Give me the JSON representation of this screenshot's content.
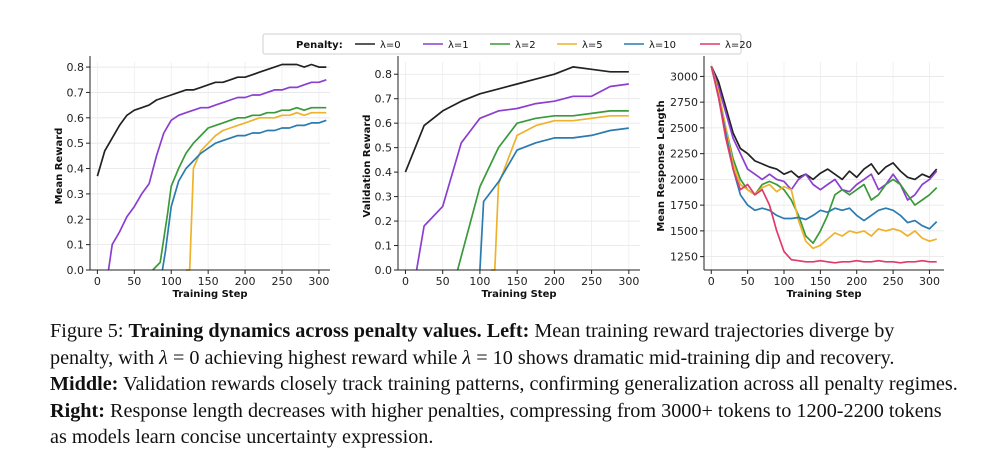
{
  "chart_data": [
    {
      "type": "line",
      "panel": "left",
      "xlabel": "Training Step",
      "ylabel": "Mean Reward",
      "xlim": [
        -10,
        315
      ],
      "ylim": [
        0,
        0.82
      ],
      "xticks": [
        0,
        50,
        100,
        150,
        200,
        250,
        300
      ],
      "yticks": [
        0.0,
        0.1,
        0.2,
        0.3,
        0.4,
        0.5,
        0.6,
        0.7,
        0.8
      ],
      "ytick_labels": [
        "0.0",
        "0.1",
        "0.2",
        "0.3",
        "0.4",
        "0.5",
        "0.6",
        "0.7",
        "0.8"
      ],
      "grid": true,
      "series": [
        {
          "name": "λ=0",
          "x": [
            0,
            10,
            20,
            30,
            40,
            50,
            60,
            70,
            80,
            90,
            100,
            110,
            120,
            130,
            140,
            150,
            160,
            170,
            180,
            190,
            200,
            210,
            220,
            230,
            240,
            250,
            260,
            270,
            280,
            290,
            300,
            310
          ],
          "y": [
            0.37,
            0.47,
            0.52,
            0.57,
            0.61,
            0.63,
            0.64,
            0.65,
            0.67,
            0.68,
            0.69,
            0.7,
            0.71,
            0.71,
            0.72,
            0.73,
            0.74,
            0.74,
            0.75,
            0.76,
            0.76,
            0.77,
            0.78,
            0.79,
            0.8,
            0.81,
            0.81,
            0.81,
            0.8,
            0.81,
            0.8,
            0.8
          ]
        },
        {
          "name": "λ=1",
          "x": [
            15,
            20,
            30,
            40,
            50,
            60,
            70,
            80,
            90,
            100,
            110,
            120,
            130,
            140,
            150,
            160,
            170,
            180,
            190,
            200,
            210,
            220,
            230,
            240,
            250,
            260,
            270,
            280,
            290,
            300,
            310
          ],
          "y": [
            0.0,
            0.1,
            0.15,
            0.21,
            0.25,
            0.3,
            0.34,
            0.45,
            0.54,
            0.59,
            0.61,
            0.62,
            0.63,
            0.64,
            0.64,
            0.65,
            0.66,
            0.67,
            0.68,
            0.68,
            0.69,
            0.69,
            0.7,
            0.71,
            0.71,
            0.72,
            0.72,
            0.73,
            0.74,
            0.74,
            0.75
          ]
        },
        {
          "name": "λ=2",
          "x": [
            75,
            85,
            95,
            100,
            110,
            120,
            130,
            140,
            150,
            160,
            170,
            180,
            190,
            200,
            210,
            220,
            230,
            240,
            250,
            260,
            270,
            280,
            290,
            300,
            310
          ],
          "y": [
            0.0,
            0.03,
            0.22,
            0.33,
            0.4,
            0.46,
            0.5,
            0.53,
            0.56,
            0.57,
            0.58,
            0.59,
            0.6,
            0.6,
            0.61,
            0.61,
            0.62,
            0.62,
            0.63,
            0.63,
            0.64,
            0.63,
            0.64,
            0.64,
            0.64
          ]
        },
        {
          "name": "λ=5",
          "x": [
            120,
            125,
            130,
            140,
            150,
            160,
            170,
            180,
            190,
            200,
            210,
            220,
            230,
            240,
            250,
            260,
            270,
            280,
            290,
            300,
            310
          ],
          "y": [
            0.0,
            0.0,
            0.4,
            0.47,
            0.5,
            0.53,
            0.55,
            0.56,
            0.57,
            0.58,
            0.59,
            0.6,
            0.6,
            0.6,
            0.61,
            0.61,
            0.62,
            0.61,
            0.62,
            0.62,
            0.62
          ]
        },
        {
          "name": "λ=10",
          "x": [
            88,
            92,
            100,
            110,
            120,
            130,
            140,
            150,
            160,
            170,
            180,
            190,
            200,
            210,
            220,
            230,
            240,
            250,
            260,
            270,
            280,
            290,
            300,
            310
          ],
          "y": [
            0.0,
            0.07,
            0.25,
            0.35,
            0.4,
            0.43,
            0.46,
            0.48,
            0.5,
            0.51,
            0.52,
            0.53,
            0.53,
            0.54,
            0.54,
            0.55,
            0.55,
            0.56,
            0.56,
            0.57,
            0.57,
            0.58,
            0.58,
            0.59
          ]
        }
      ]
    },
    {
      "type": "line",
      "panel": "middle",
      "xlabel": "Training Step",
      "ylabel": "Validation Reward",
      "xlim": [
        -10,
        315
      ],
      "ylim": [
        0,
        0.85
      ],
      "xticks": [
        0,
        50,
        100,
        150,
        200,
        250,
        300
      ],
      "yticks": [
        0.0,
        0.1,
        0.2,
        0.3,
        0.4,
        0.5,
        0.6,
        0.7,
        0.8
      ],
      "ytick_labels": [
        "0.0",
        "0.1",
        "0.2",
        "0.3",
        "0.4",
        "0.5",
        "0.6",
        "0.7",
        "0.8"
      ],
      "grid": true,
      "series": [
        {
          "name": "λ=0",
          "x": [
            0,
            25,
            50,
            75,
            100,
            125,
            150,
            175,
            200,
            225,
            250,
            275,
            300
          ],
          "y": [
            0.4,
            0.59,
            0.65,
            0.69,
            0.72,
            0.74,
            0.76,
            0.78,
            0.8,
            0.83,
            0.82,
            0.81,
            0.81
          ]
        },
        {
          "name": "λ=1",
          "x": [
            15,
            25,
            50,
            75,
            100,
            125,
            150,
            175,
            200,
            225,
            250,
            275,
            300
          ],
          "y": [
            0.0,
            0.18,
            0.26,
            0.52,
            0.62,
            0.65,
            0.66,
            0.68,
            0.69,
            0.71,
            0.71,
            0.75,
            0.76
          ]
        },
        {
          "name": "λ=2",
          "x": [
            70,
            100,
            125,
            150,
            175,
            200,
            225,
            250,
            275,
            300
          ],
          "y": [
            0.0,
            0.34,
            0.5,
            0.6,
            0.62,
            0.63,
            0.63,
            0.64,
            0.65,
            0.65
          ]
        },
        {
          "name": "λ=5",
          "x": [
            115,
            120,
            125,
            150,
            175,
            200,
            225,
            250,
            275,
            300
          ],
          "y": [
            0.0,
            0.0,
            0.35,
            0.55,
            0.59,
            0.61,
            0.61,
            0.62,
            0.63,
            0.63
          ]
        },
        {
          "name": "λ=10",
          "x": [
            100,
            105,
            125,
            150,
            175,
            200,
            225,
            250,
            275,
            300
          ],
          "y": [
            0.0,
            0.28,
            0.36,
            0.49,
            0.52,
            0.54,
            0.54,
            0.55,
            0.57,
            0.58
          ]
        }
      ]
    },
    {
      "type": "line",
      "panel": "right",
      "xlabel": "Training Step",
      "ylabel": "Mean Response Length",
      "xlim": [
        -10,
        320
      ],
      "ylim": [
        1120,
        3140
      ],
      "xticks": [
        0,
        50,
        100,
        150,
        200,
        250,
        300
      ],
      "yticks": [
        1250,
        1500,
        1750,
        2000,
        2250,
        2500,
        2750,
        3000
      ],
      "ytick_labels": [
        "1250",
        "1500",
        "1750",
        "2000",
        "2250",
        "2500",
        "2750",
        "3000"
      ],
      "grid": true,
      "series": [
        {
          "name": "λ=0",
          "x": [
            0,
            10,
            20,
            30,
            40,
            50,
            60,
            70,
            80,
            90,
            100,
            110,
            120,
            130,
            140,
            150,
            160,
            170,
            180,
            190,
            200,
            210,
            220,
            230,
            240,
            250,
            260,
            270,
            280,
            290,
            300,
            310
          ],
          "y": [
            3100,
            2950,
            2700,
            2450,
            2300,
            2250,
            2180,
            2150,
            2120,
            2100,
            2050,
            2080,
            2020,
            2050,
            2000,
            2060,
            2100,
            2050,
            2000,
            2080,
            2020,
            2100,
            2150,
            2050,
            2120,
            2160,
            2080,
            2020,
            2000,
            2050,
            2020,
            2100
          ]
        },
        {
          "name": "λ=1",
          "x": [
            0,
            10,
            20,
            30,
            40,
            50,
            60,
            70,
            80,
            90,
            100,
            110,
            120,
            130,
            140,
            150,
            160,
            170,
            180,
            190,
            200,
            210,
            220,
            230,
            240,
            250,
            260,
            270,
            280,
            290,
            300,
            310
          ],
          "y": [
            3100,
            2900,
            2650,
            2400,
            2250,
            2100,
            2050,
            2000,
            2050,
            2000,
            1980,
            1900,
            2000,
            2050,
            1950,
            1900,
            1950,
            2000,
            1900,
            1880,
            1950,
            2000,
            2050,
            1900,
            1950,
            2050,
            1950,
            1800,
            1850,
            1950,
            2000,
            2080
          ]
        },
        {
          "name": "λ=2",
          "x": [
            0,
            10,
            20,
            30,
            40,
            50,
            60,
            70,
            80,
            90,
            100,
            110,
            120,
            130,
            140,
            150,
            160,
            170,
            180,
            190,
            200,
            210,
            220,
            230,
            240,
            250,
            260,
            270,
            280,
            290,
            300,
            310
          ],
          "y": [
            3100,
            2850,
            2500,
            2200,
            2000,
            1900,
            1850,
            1950,
            1980,
            1950,
            1900,
            1800,
            1650,
            1450,
            1380,
            1500,
            1650,
            1850,
            1900,
            1850,
            1900,
            1950,
            1800,
            1850,
            1950,
            2000,
            1950,
            1850,
            1750,
            1800,
            1850,
            1920
          ]
        },
        {
          "name": "λ=5",
          "x": [
            0,
            10,
            20,
            30,
            40,
            50,
            60,
            70,
            80,
            90,
            100,
            110,
            120,
            130,
            140,
            150,
            160,
            170,
            180,
            190,
            200,
            210,
            220,
            230,
            240,
            250,
            260,
            270,
            280,
            290,
            300,
            310
          ],
          "y": [
            3100,
            2850,
            2500,
            2150,
            1950,
            1900,
            1850,
            1920,
            1950,
            1880,
            1930,
            1900,
            1600,
            1400,
            1330,
            1360,
            1420,
            1480,
            1450,
            1500,
            1480,
            1500,
            1450,
            1520,
            1500,
            1520,
            1500,
            1450,
            1500,
            1430,
            1400,
            1420
          ]
        },
        {
          "name": "λ=10",
          "x": [
            0,
            10,
            20,
            30,
            40,
            50,
            60,
            70,
            80,
            90,
            100,
            110,
            120,
            130,
            140,
            150,
            160,
            170,
            180,
            190,
            200,
            210,
            220,
            230,
            240,
            250,
            260,
            270,
            280,
            290,
            300,
            310
          ],
          "y": [
            3100,
            2800,
            2450,
            2100,
            1850,
            1750,
            1700,
            1720,
            1700,
            1650,
            1620,
            1620,
            1630,
            1610,
            1650,
            1700,
            1680,
            1720,
            1700,
            1720,
            1650,
            1600,
            1650,
            1700,
            1720,
            1700,
            1650,
            1580,
            1600,
            1550,
            1520,
            1590
          ]
        },
        {
          "name": "λ=20",
          "x": [
            0,
            10,
            20,
            30,
            40,
            50,
            60,
            70,
            80,
            90,
            100,
            110,
            120,
            130,
            140,
            150,
            160,
            170,
            180,
            190,
            200,
            210,
            220,
            230,
            240,
            250,
            260,
            270,
            280,
            290,
            300,
            310
          ],
          "y": [
            3100,
            2800,
            2400,
            2100,
            1900,
            1950,
            1850,
            1900,
            1750,
            1500,
            1300,
            1220,
            1210,
            1200,
            1200,
            1210,
            1200,
            1190,
            1200,
            1200,
            1210,
            1200,
            1200,
            1210,
            1200,
            1200,
            1190,
            1200,
            1200,
            1210,
            1200,
            1200
          ]
        }
      ]
    }
  ],
  "legend": {
    "title": "Penalty:",
    "placement": "top-center",
    "entries": [
      {
        "label": "λ=0",
        "color": "#222222"
      },
      {
        "label": "λ=1",
        "color": "#8a3fd1"
      },
      {
        "label": "λ=2",
        "color": "#3a9a3a"
      },
      {
        "label": "λ=5",
        "color": "#efb22a"
      },
      {
        "label": "λ=10",
        "color": "#2a7bb0"
      },
      {
        "label": "λ=20",
        "color": "#e03a6a"
      }
    ]
  },
  "caption": {
    "figure_label": "Figure 5:",
    "title": "Training dynamics across penalty values.",
    "left_label": "Left:",
    "left_text_1": "Mean training reward trajectories diverge by penalty, with",
    "lambda_symbol": "λ",
    "left_eq_1": "= 0",
    "left_text_2": "achieving highest reward while",
    "left_eq_2": "= 10",
    "left_text_3": "shows dramatic mid-training dip and recovery.",
    "middle_label": "Middle:",
    "middle_text": "Validation rewards closely track training patterns, confirming generalization across all penalty regimes.",
    "right_label": "Right:",
    "right_text": "Response length decreases with higher penalties, compressing from 3000+ tokens to 1200-2200 tokens as models learn concise uncertainty expression."
  }
}
